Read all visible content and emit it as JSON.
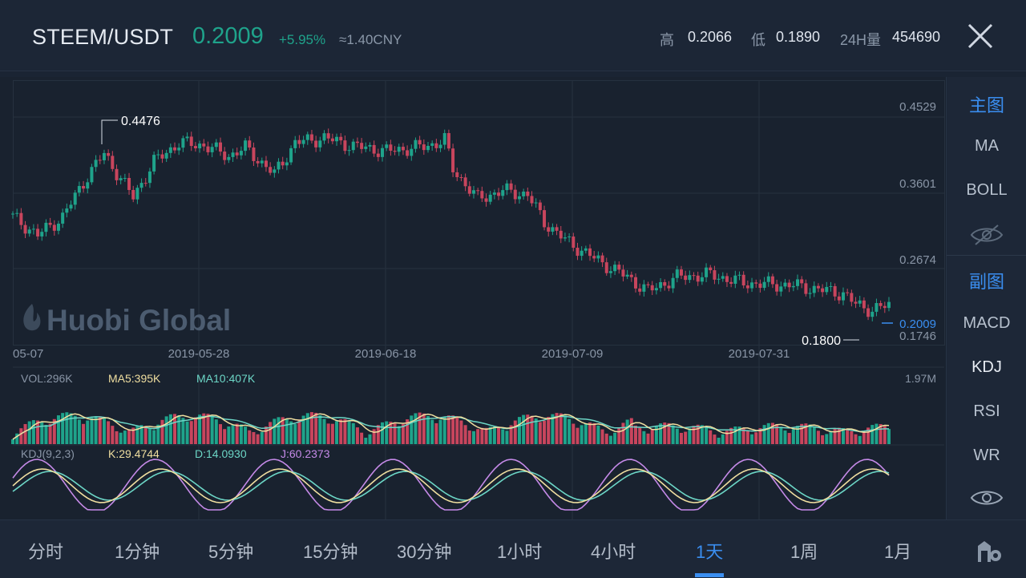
{
  "header": {
    "pair": "STEEM/USDT",
    "price": "0.2009",
    "change": "+5.95%",
    "cny": "≈1.40CNY",
    "high_label": "高",
    "high_value": "0.2066",
    "low_label": "低",
    "low_value": "0.1890",
    "vol_label": "24H量",
    "vol_value": "454690"
  },
  "chart": {
    "y_ticks": [
      "0.4529",
      "0.3601",
      "0.2674",
      "0.1746"
    ],
    "current_price": "0.2009",
    "max_label": "0.4476",
    "min_label": "0.1800",
    "x_ticks": [
      "05-07",
      "2019-05-28",
      "2019-06-18",
      "2019-07-09",
      "2019-07-31"
    ],
    "watermark": "Huobi Global",
    "volume": {
      "vol": "VOL:296K",
      "ma5": "MA5:395K",
      "ma10": "MA10:407K",
      "max": "1.97M"
    },
    "kdj": {
      "title": "KDJ(9,2,3)",
      "k": "K:29.4744",
      "d": "D:14.0930",
      "j": "J:60.2373"
    }
  },
  "colors": {
    "up": "#1fa38b",
    "down": "#c8455d",
    "accent": "#3a8ef0",
    "ma5": "#f0dfa0",
    "ma10": "#6cd6c6",
    "j_line": "#c58ae8"
  },
  "sidebar": {
    "main_header": "主图",
    "main_items": [
      "MA",
      "BOLL"
    ],
    "sub_header": "副图",
    "sub_items": [
      "MACD",
      "KDJ",
      "RSI",
      "WR"
    ]
  },
  "tabs": [
    "分时",
    "1分钟",
    "5分钟",
    "15分钟",
    "30分钟",
    "1小时",
    "4小时",
    "1天",
    "1周",
    "1月"
  ],
  "active_tab": "1天"
}
